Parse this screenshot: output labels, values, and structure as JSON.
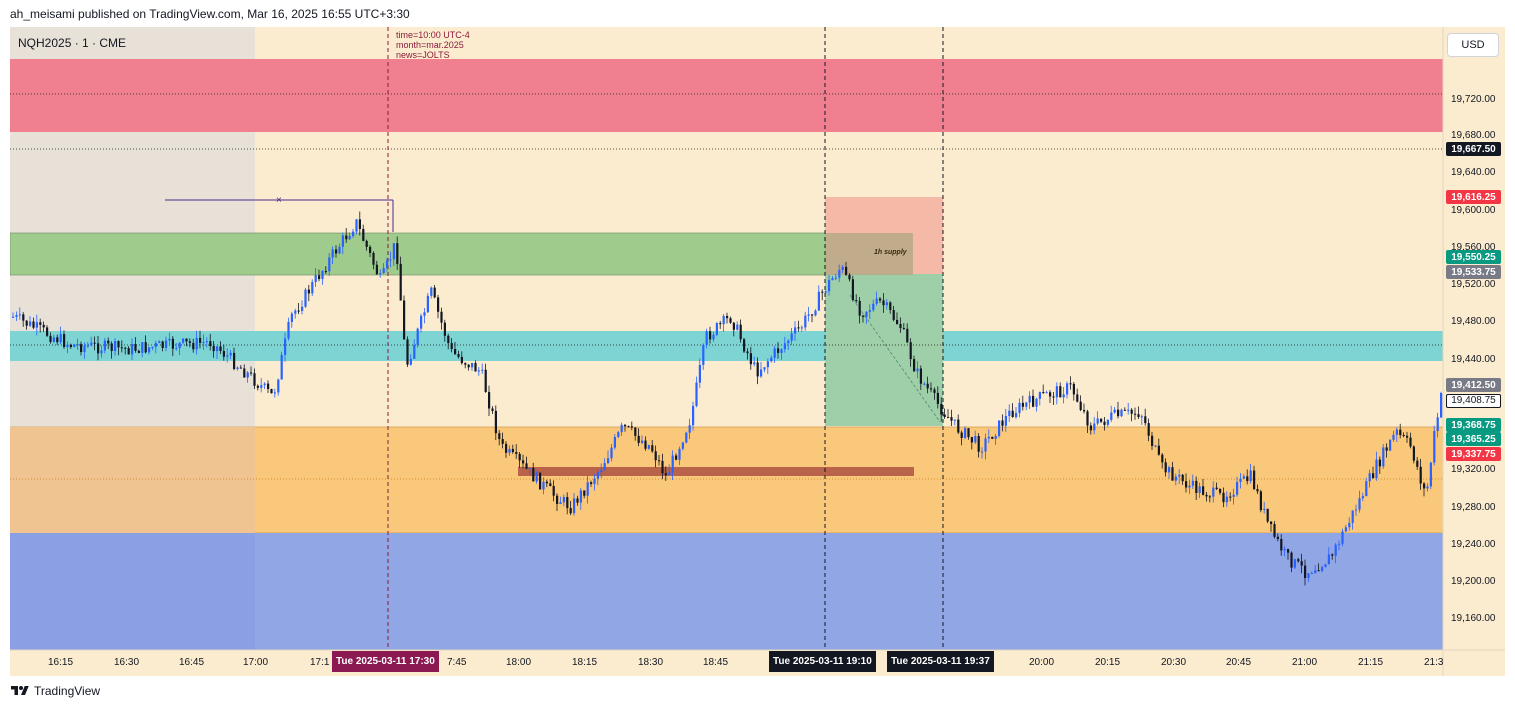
{
  "header": {
    "published_line": "ah_meisami published on TradingView.com, Mar 16, 2025 16:55 UTC+3:30"
  },
  "chart": {
    "symbol": "NQH2025 · 1 · CME",
    "currency_button": "USD",
    "event_annotation": {
      "line1": "time=10:00 UTC-4",
      "line2": "month=mar.2025",
      "line3": "news=JOLTS"
    },
    "zone_label": "1h supply",
    "cursor_marker": "×"
  },
  "price_axis": {
    "ticks": [
      "19,720.00",
      "19,680.00",
      "19,640.00",
      "19,600.00",
      "19,560.00",
      "19,520.00",
      "19,480.00",
      "19,440.00",
      "19,408.75",
      "19,320.00",
      "19,280.00",
      "19,240.00",
      "19,200.00",
      "19,160.00"
    ],
    "badges": [
      {
        "text": "19,667.50",
        "color": "#131722"
      },
      {
        "text": "19,616.25",
        "color": "#f23645"
      },
      {
        "text": "19,550.25",
        "color": "#089981"
      },
      {
        "text": "19,533.75",
        "color": "#787b86"
      },
      {
        "text": "19,412.50",
        "color": "#787b86"
      },
      {
        "text": "19,368.75",
        "color": "#089981"
      },
      {
        "text": "19,365.25",
        "color": "#089981"
      },
      {
        "text": "19,337.75",
        "color": "#f23645"
      }
    ]
  },
  "time_axis": {
    "ticks": [
      "16:15",
      "16:30",
      "16:45",
      "17:00",
      "17:1",
      "7:45",
      "18:00",
      "18:15",
      "18:30",
      "18:45",
      "20:00",
      "20:15",
      "20:30",
      "20:45",
      "21:00",
      "21:15",
      "21:3"
    ],
    "badges": [
      {
        "text": "Tue 2025-03-11   17:30",
        "color": "#8b1a52"
      },
      {
        "text": "Tue 2025-03-11   19:10",
        "color": "#131722"
      },
      {
        "text": "Tue 2025-03-11   19:37",
        "color": "#131722"
      }
    ]
  },
  "footer": {
    "brand": "TradingView"
  },
  "colors": {
    "bull": "#2962ff",
    "bear": "#131722",
    "background": "#fbecd0"
  }
}
